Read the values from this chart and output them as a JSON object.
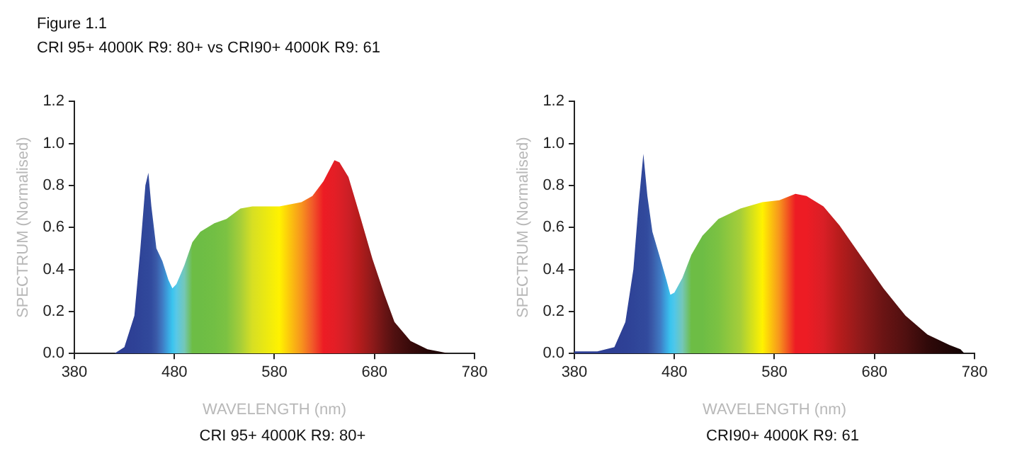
{
  "chart_data": [
    {
      "type": "area",
      "title": "Figure 1.1",
      "subtitle": "CRI 95+ 4000K R9: 80+ vs CRI90+ 4000K R9: 61",
      "xlabel": "WAVELENGTH (nm)",
      "ylabel": "SPECTRUM (Normalised)",
      "annotations": [
        "CRI 95+ 4000K R9: 80+"
      ],
      "xlim": [
        380,
        780
      ],
      "xticks": [
        380,
        480,
        580,
        680,
        780
      ],
      "ylim": [
        0,
        1.2
      ],
      "yticks": [
        {
          "value": 0,
          "label": "0.0"
        },
        {
          "value": 0.2,
          "label": "0.2"
        },
        {
          "value": 0.4,
          "label": "0.4"
        },
        {
          "value": 0.6,
          "label": "0.6"
        },
        {
          "value": 0.8,
          "label": "0.8"
        },
        {
          "value": 1,
          "label": "1.0"
        },
        {
          "value": 1.2,
          "label": "1.2"
        }
      ],
      "grid": false,
      "legend": false,
      "marker": "none",
      "series": [
        {
          "x": [
            420,
            430,
            440,
            446,
            451,
            454,
            457,
            462,
            468,
            474,
            478,
            482,
            490,
            498,
            506,
            520,
            532,
            546,
            558,
            585,
            607,
            618,
            629,
            640,
            645,
            654,
            664,
            678,
            690,
            700,
            716,
            733,
            755
          ],
          "values": [
            0,
            0.03,
            0.18,
            0.5,
            0.8,
            0.86,
            0.7,
            0.5,
            0.44,
            0.35,
            0.31,
            0.33,
            0.42,
            0.53,
            0.58,
            0.62,
            0.64,
            0.69,
            0.7,
            0.7,
            0.72,
            0.75,
            0.82,
            0.92,
            0.91,
            0.84,
            0.68,
            0.45,
            0.28,
            0.15,
            0.06,
            0.02,
            0
          ],
          "colors": [
            "#2e3f94",
            "#2e3f94",
            "#2e4196",
            "#2f4498",
            "#30479a",
            "#31489b",
            "#324b9e",
            "#3a5aa8",
            "#3f7bc4",
            "#3aa8e2",
            "#3bc4ee",
            "#58c8e8",
            "#74c7b8",
            "#6dbd45",
            "#6dbd45",
            "#72bf44",
            "#7cc242",
            "#a6ce39",
            "#d7df23",
            "#fff200",
            "#f7941d",
            "#f15a29",
            "#ed1c24",
            "#e41e26",
            "#dc1f26",
            "#cc1f26",
            "#b71c1c",
            "#8e1a1a",
            "#6a1414",
            "#501010",
            "#380a0a",
            "#250606",
            "#1a0505"
          ]
        }
      ]
    },
    {
      "type": "area",
      "xlabel": "WAVELENGTH (nm)",
      "ylabel": "SPECTRUM (Normalised)",
      "annotations": [
        "CRI90+ 4000K R9: 61"
      ],
      "xlim": [
        380,
        780
      ],
      "xticks": [
        380,
        480,
        580,
        680,
        780
      ],
      "ylim": [
        0,
        1.2
      ],
      "yticks": [
        {
          "value": 0,
          "label": "0.0"
        },
        {
          "value": 0.2,
          "label": "0.2"
        },
        {
          "value": 0.4,
          "label": "0.4"
        },
        {
          "value": 0.6,
          "label": "0.6"
        },
        {
          "value": 0.8,
          "label": "0.8"
        },
        {
          "value": 1,
          "label": "1.0"
        },
        {
          "value": 1.2,
          "label": "1.2"
        }
      ],
      "grid": false,
      "legend": false,
      "marker": "none",
      "series": [
        {
          "x": [
            380,
            403,
            420,
            431,
            439,
            444,
            449,
            453,
            458,
            466,
            472,
            476,
            480,
            488,
            497,
            508,
            524,
            546,
            568,
            585,
            601,
            612,
            629,
            645,
            667,
            689,
            711,
            733,
            755,
            766,
            770
          ],
          "values": [
            0.01,
            0.01,
            0.03,
            0.15,
            0.4,
            0.7,
            0.95,
            0.75,
            0.58,
            0.45,
            0.35,
            0.28,
            0.29,
            0.36,
            0.47,
            0.56,
            0.64,
            0.69,
            0.72,
            0.73,
            0.76,
            0.75,
            0.7,
            0.61,
            0.46,
            0.31,
            0.18,
            0.09,
            0.04,
            0.02,
            0
          ],
          "colors": [
            "#2e3f94",
            "#2e3f94",
            "#2e3f94",
            "#2e4196",
            "#2f4498",
            "#30479a",
            "#31489b",
            "#324b9e",
            "#3a5aa8",
            "#3f7bc4",
            "#3aa8e2",
            "#3bc4ee",
            "#4fc7ea",
            "#74c7b8",
            "#6dbd45",
            "#6dbd45",
            "#7cc242",
            "#a6ce39",
            "#fff200",
            "#f7941d",
            "#ed1c24",
            "#ed1c24",
            "#d91f26",
            "#b71c1c",
            "#8e1a1a",
            "#6a1414",
            "#501010",
            "#300909",
            "#1e0606",
            "#150404",
            "#100303"
          ]
        }
      ]
    }
  ]
}
